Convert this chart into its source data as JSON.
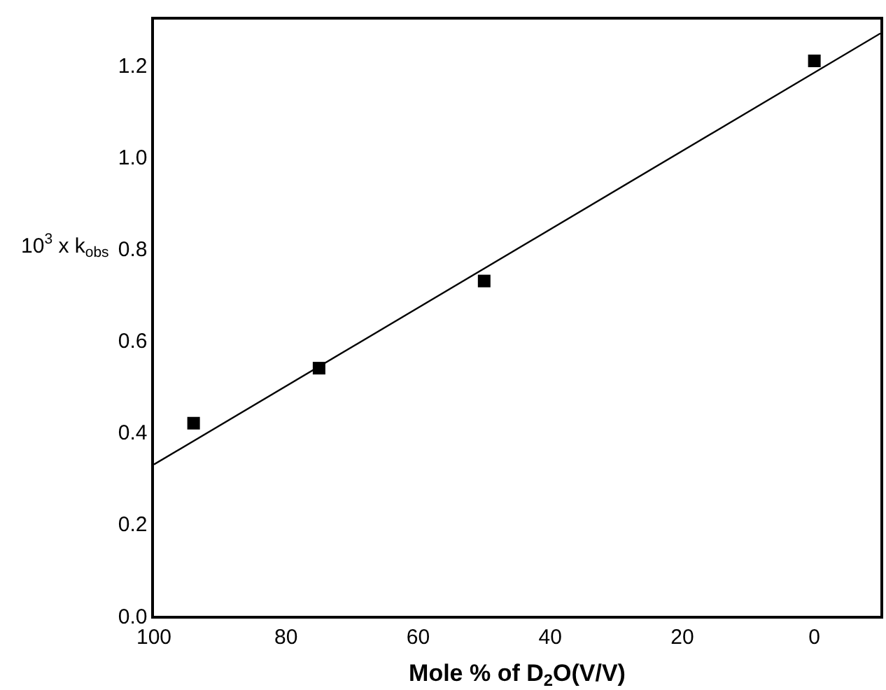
{
  "chart_data": {
    "type": "scatter",
    "xlabel": "Mole % of D$_{2}$O(V/V)",
    "ylabel": "10$^{3}$ x k$_{obs}$",
    "xlim": [
      100,
      -10
    ],
    "xticks": [
      100,
      80,
      60,
      40,
      20,
      0
    ],
    "ylim": [
      0,
      1.3
    ],
    "yticks": [
      {
        "value": 0,
        "label": "0.0"
      },
      0.2,
      0.4,
      0.6,
      0.8,
      {
        "value": 1,
        "label": "1.0"
      },
      1.2
    ],
    "legend": false,
    "series": [
      {
        "color": "#000000",
        "marker": "square",
        "x": [
          94,
          75,
          50,
          0
        ],
        "values": [
          0.42,
          0.54,
          0.73,
          1.21
        ]
      },
      {
        "type": "line",
        "color": "#000000",
        "marker": "none",
        "x": [
          100,
          -10
        ],
        "values": [
          0.33,
          1.27
        ]
      }
    ]
  }
}
